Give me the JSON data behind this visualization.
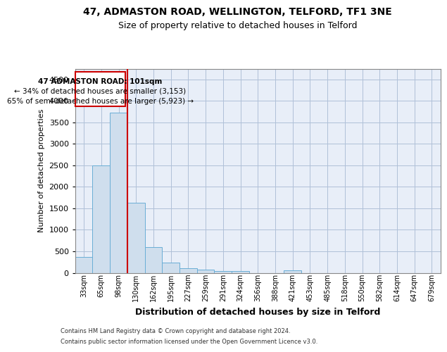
{
  "title1": "47, ADMASTON ROAD, WELLINGTON, TELFORD, TF1 3NE",
  "title2": "Size of property relative to detached houses in Telford",
  "xlabel": "Distribution of detached houses by size in Telford",
  "ylabel": "Number of detached properties",
  "footnote1": "Contains HM Land Registry data © Crown copyright and database right 2024.",
  "footnote2": "Contains public sector information licensed under the Open Government Licence v3.0.",
  "bar_labels": [
    "33sqm",
    "65sqm",
    "98sqm",
    "130sqm",
    "162sqm",
    "195sqm",
    "227sqm",
    "259sqm",
    "291sqm",
    "324sqm",
    "356sqm",
    "388sqm",
    "421sqm",
    "453sqm",
    "485sqm",
    "518sqm",
    "550sqm",
    "582sqm",
    "614sqm",
    "647sqm",
    "679sqm"
  ],
  "bar_values": [
    370,
    2500,
    3720,
    1630,
    590,
    230,
    110,
    70,
    40,
    40,
    0,
    0,
    60,
    0,
    0,
    0,
    0,
    0,
    0,
    0,
    0
  ],
  "bar_color": "#cfdeed",
  "bar_edgecolor": "#6aaed6",
  "ylim": [
    0,
    4750
  ],
  "yticks": [
    0,
    500,
    1000,
    1500,
    2000,
    2500,
    3000,
    3500,
    4000,
    4500
  ],
  "red_line_x": 2.5,
  "red_line_color": "#cc0000",
  "annotation_text_line1": "47 ADMASTON ROAD: 101sqm",
  "annotation_text_line2": "← 34% of detached houses are smaller (3,153)",
  "annotation_text_line3": "65% of semi-detached houses are larger (5,923) →",
  "annotation_box_color": "#cc0000",
  "bg_color": "#e8eef8",
  "grid_color": "#b0c0d8"
}
